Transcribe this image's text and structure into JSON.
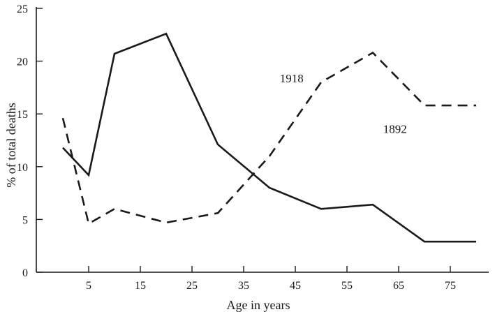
{
  "chart_data": {
    "type": "line",
    "title": "",
    "xlabel": "Age in years",
    "ylabel": "% of total deaths",
    "xlim": [
      0,
      80
    ],
    "ylim": [
      0,
      25
    ],
    "x_ticks": [
      5,
      15,
      25,
      35,
      45,
      55,
      65,
      75
    ],
    "x_tick_labels": [
      "5",
      "15",
      "25",
      "35",
      "45",
      "55",
      "65",
      "75"
    ],
    "y_ticks": [
      0,
      5,
      10,
      15,
      20,
      25
    ],
    "y_tick_labels": [
      "0",
      "5",
      "10",
      "15",
      "20",
      "25"
    ],
    "grid": false,
    "series": [
      {
        "name": "1918",
        "style": "solid",
        "color": "#1a1a1a",
        "x": [
          0,
          5,
          10,
          20,
          30,
          40,
          50,
          60,
          70,
          80
        ],
        "values": [
          11.8,
          9.2,
          20.7,
          22.6,
          12.1,
          8.0,
          6.0,
          6.4,
          2.9,
          2.9
        ],
        "label_at": [
          42,
          18
        ]
      },
      {
        "name": "1892",
        "style": "dashed",
        "color": "#1a1a1a",
        "x": [
          0,
          5,
          10,
          20,
          30,
          40,
          50,
          60,
          70,
          80
        ],
        "values": [
          14.6,
          4.6,
          6.0,
          4.7,
          5.6,
          11.0,
          18.0,
          20.8,
          15.8,
          15.8
        ],
        "label_at": [
          62,
          13.2
        ]
      }
    ]
  }
}
